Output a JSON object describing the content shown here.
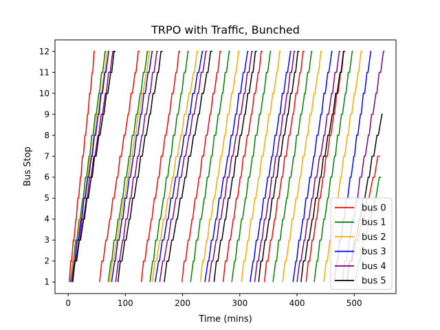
{
  "chart_data": {
    "type": "line",
    "title": "TRPO with Traffic, Bunched",
    "xlabel": "Time (mins)",
    "ylabel": "Bus Stop",
    "xlim": [
      -23,
      573
    ],
    "ylim": [
      0.45,
      12.55
    ],
    "xticks": [
      0,
      100,
      200,
      300,
      400,
      500
    ],
    "yticks": [
      1,
      2,
      3,
      4,
      5,
      6,
      7,
      8,
      9,
      10,
      11,
      12
    ],
    "grid": false,
    "legend_position": "bottom-right",
    "series": [
      {
        "name": "bus 0",
        "color": "#ff0000",
        "runs": [
          {
            "start": 2,
            "end": 47,
            "stops": 12
          },
          {
            "start": 55,
            "end": 125,
            "stops": 12
          },
          {
            "start": 128,
            "end": 196,
            "stops": 12
          },
          {
            "start": 199,
            "end": 268,
            "stops": 12
          },
          {
            "start": 271,
            "end": 340,
            "stops": 12
          },
          {
            "start": 343,
            "end": 413,
            "stops": 12
          },
          {
            "start": 416,
            "end": 484,
            "stops": 12
          },
          {
            "start": 487,
            "end": 545,
            "stops": 7
          }
        ]
      },
      {
        "name": "bus 1",
        "color": "#008000",
        "runs": [
          {
            "start": 4,
            "end": 66,
            "stops": 12
          },
          {
            "start": 70,
            "end": 140,
            "stops": 12
          },
          {
            "start": 143,
            "end": 211,
            "stops": 12
          },
          {
            "start": 214,
            "end": 283,
            "stops": 12
          },
          {
            "start": 286,
            "end": 355,
            "stops": 12
          },
          {
            "start": 358,
            "end": 427,
            "stops": 12
          },
          {
            "start": 430,
            "end": 498,
            "stops": 12
          },
          {
            "start": 501,
            "end": 547,
            "stops": 6
          }
        ]
      },
      {
        "name": "bus 2",
        "color": "#ffa500",
        "runs": [
          {
            "start": 5,
            "end": 70,
            "stops": 12
          },
          {
            "start": 73,
            "end": 144,
            "stops": 12
          },
          {
            "start": 147,
            "end": 228,
            "stops": 12
          },
          {
            "start": 231,
            "end": 300,
            "stops": 12
          },
          {
            "start": 303,
            "end": 372,
            "stops": 12
          },
          {
            "start": 375,
            "end": 444,
            "stops": 12
          },
          {
            "start": 447,
            "end": 514,
            "stops": 12
          }
        ]
      },
      {
        "name": "bus 3",
        "color": "#0000ff",
        "runs": [
          {
            "start": 6,
            "end": 72,
            "stops": 12
          },
          {
            "start": 76,
            "end": 148,
            "stops": 12
          },
          {
            "start": 152,
            "end": 236,
            "stops": 12
          },
          {
            "start": 239,
            "end": 315,
            "stops": 12
          },
          {
            "start": 318,
            "end": 390,
            "stops": 12
          },
          {
            "start": 393,
            "end": 462,
            "stops": 12
          },
          {
            "start": 465,
            "end": 530,
            "stops": 12
          }
        ]
      },
      {
        "name": "bus 4",
        "color": "#800080",
        "runs": [
          {
            "start": 7,
            "end": 80,
            "stops": 12
          },
          {
            "start": 83,
            "end": 157,
            "stops": 12
          },
          {
            "start": 160,
            "end": 243,
            "stops": 12
          },
          {
            "start": 246,
            "end": 323,
            "stops": 12
          },
          {
            "start": 326,
            "end": 397,
            "stops": 12
          },
          {
            "start": 400,
            "end": 476,
            "stops": 12
          },
          {
            "start": 479,
            "end": 553,
            "stops": 12
          }
        ]
      },
      {
        "name": "bus 5",
        "color": "#000000",
        "runs": [
          {
            "start": 8,
            "end": 83,
            "stops": 12
          },
          {
            "start": 87,
            "end": 165,
            "stops": 12
          },
          {
            "start": 168,
            "end": 252,
            "stops": 12
          },
          {
            "start": 255,
            "end": 330,
            "stops": 12
          },
          {
            "start": 333,
            "end": 404,
            "stops": 12
          },
          {
            "start": 407,
            "end": 484,
            "stops": 12
          },
          {
            "start": 487,
            "end": 550,
            "stops": 9
          }
        ]
      }
    ]
  }
}
